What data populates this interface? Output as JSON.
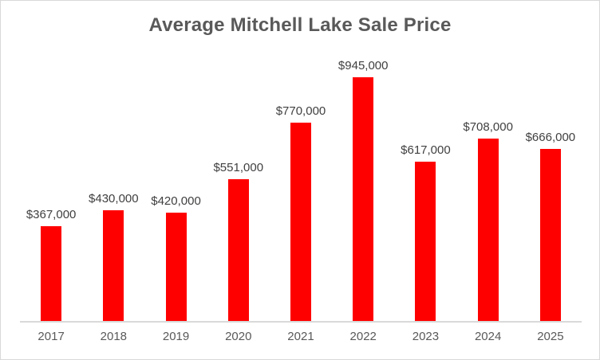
{
  "chart_data": {
    "type": "bar",
    "title": "Average Mitchell Lake Sale Price",
    "categories": [
      "2017",
      "2018",
      "2019",
      "2020",
      "2021",
      "2022",
      "2023",
      "2024",
      "2025"
    ],
    "values": [
      367000,
      430000,
      420000,
      551000,
      770000,
      945000,
      617000,
      708000,
      666000
    ],
    "value_labels": [
      "$367,000",
      "$430,000",
      "$420,000",
      "$551,000",
      "$770,000",
      "$945,000",
      "$617,000",
      "$708,000",
      "$666,000"
    ],
    "xlabel": "",
    "ylabel": "",
    "ylim": [
      0,
      945000
    ],
    "y_axis_visible": false,
    "grid": false,
    "legend": false,
    "data_label_position": "outside-end",
    "colors": {
      "bar": "#ff0000",
      "axis_line": "#d9d9d9",
      "frame_border": "#d9d9d9",
      "title_text": "#595959",
      "data_label_text": "#404040",
      "axis_label_text": "#595959"
    }
  }
}
